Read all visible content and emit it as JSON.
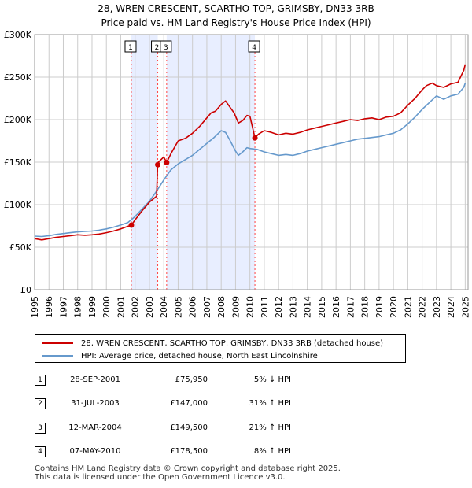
{
  "title_line1": "28, WREN CRESCENT, SCARTHO TOP, GRIMSBY, DN33 3RB",
  "title_line2": "Price paid vs. HM Land Registry's House Price Index (HPI)",
  "colors": {
    "property": "#cc0000",
    "hpi": "#6699cc",
    "shade": "#e8eeff",
    "grid": "#cccccc",
    "marker_line": "#ff4444"
  },
  "chart_data": {
    "type": "line",
    "title": "28, WREN CRESCENT, SCARTHO TOP, GRIMSBY, DN33 3RB",
    "subtitle": "Price paid vs. HM Land Registry's House Price Index (HPI)",
    "xlim": [
      1995,
      2025.2
    ],
    "ylim": [
      0,
      300000
    ],
    "x_ticks": [
      "1995",
      "1996",
      "1997",
      "1998",
      "1999",
      "2000",
      "2001",
      "2002",
      "2003",
      "2004",
      "2005",
      "2006",
      "2007",
      "2008",
      "2009",
      "2010",
      "2011",
      "2012",
      "2013",
      "2014",
      "2015",
      "2016",
      "2017",
      "2018",
      "2019",
      "2020",
      "2021",
      "2022",
      "2023",
      "2024",
      "2025"
    ],
    "y_ticks": [
      {
        "value": 0,
        "label": "£0"
      },
      {
        "value": 50000,
        "label": "£50K"
      },
      {
        "value": 100000,
        "label": "£100K"
      },
      {
        "value": 150000,
        "label": "£150K"
      },
      {
        "value": 200000,
        "label": "£200K"
      },
      {
        "value": 250000,
        "label": "£250K"
      },
      {
        "value": 300000,
        "label": "£300K"
      }
    ],
    "series": [
      {
        "name": "28, WREN CRESCENT, SCARTHO TOP, GRIMSBY, DN33 3RB (detached house)",
        "color": "#cc0000",
        "x": [
          1995.0,
          1995.5,
          1996.0,
          1996.5,
          1997.0,
          1997.5,
          1998.0,
          1998.5,
          1999.0,
          1999.5,
          2000.0,
          2000.5,
          2001.0,
          2001.5,
          2001.74,
          2002.0,
          2002.5,
          2003.0,
          2003.5,
          2003.57,
          2003.62,
          2004.0,
          2004.2,
          2004.5,
          2005.0,
          2005.5,
          2006.0,
          2006.5,
          2007.0,
          2007.3,
          2007.6,
          2008.0,
          2008.3,
          2008.6,
          2008.9,
          2009.2,
          2009.5,
          2009.8,
          2010.0,
          2010.35,
          2010.6,
          2011.0,
          2011.5,
          2012.0,
          2012.5,
          2013.0,
          2013.5,
          2014.0,
          2014.5,
          2015.0,
          2015.5,
          2016.0,
          2016.5,
          2017.0,
          2017.5,
          2018.0,
          2018.5,
          2019.0,
          2019.5,
          2020.0,
          2020.5,
          2021.0,
          2021.5,
          2022.0,
          2022.3,
          2022.7,
          2023.0,
          2023.5,
          2024.0,
          2024.5,
          2024.9,
          2025.0
        ],
        "values": [
          60000,
          58500,
          60000,
          61500,
          62500,
          63500,
          64500,
          64000,
          64500,
          65500,
          67000,
          69000,
          71500,
          74500,
          75950,
          82000,
          93000,
          103000,
          110000,
          147000,
          150000,
          156000,
          149500,
          160000,
          175000,
          178000,
          184000,
          192000,
          202000,
          208000,
          210000,
          218000,
          222000,
          215000,
          208000,
          196000,
          199000,
          205000,
          204000,
          178500,
          183000,
          187000,
          185000,
          182000,
          184000,
          183000,
          185000,
          188000,
          190000,
          192000,
          194000,
          196000,
          198000,
          200000,
          199000,
          201000,
          202000,
          200000,
          203000,
          204000,
          208000,
          217000,
          225000,
          235000,
          240000,
          243000,
          240000,
          238000,
          242000,
          244000,
          258000,
          265000
        ]
      },
      {
        "name": "HPI: Average price, detached house, North East Lincolnshire",
        "color": "#6699cc",
        "x": [
          1995.0,
          1995.5,
          1996.0,
          1996.5,
          1997.0,
          1997.5,
          1998.0,
          1998.5,
          1999.0,
          1999.5,
          2000.0,
          2000.5,
          2001.0,
          2001.5,
          2002.0,
          2002.5,
          2003.0,
          2003.5,
          2004.0,
          2004.5,
          2005.0,
          2005.5,
          2006.0,
          2006.5,
          2007.0,
          2007.5,
          2008.0,
          2008.3,
          2008.6,
          2009.0,
          2009.2,
          2009.5,
          2009.8,
          2010.0,
          2010.5,
          2011.0,
          2011.5,
          2012.0,
          2012.5,
          2013.0,
          2013.5,
          2014.0,
          2014.5,
          2015.0,
          2015.5,
          2016.0,
          2016.5,
          2017.0,
          2017.5,
          2018.0,
          2018.5,
          2019.0,
          2019.5,
          2020.0,
          2020.5,
          2021.0,
          2021.5,
          2022.0,
          2022.5,
          2023.0,
          2023.5,
          2024.0,
          2024.5,
          2024.9,
          2025.0
        ],
        "values": [
          63000,
          62500,
          63500,
          65000,
          66000,
          67000,
          68000,
          68500,
          69000,
          70000,
          71500,
          73500,
          76000,
          79000,
          86000,
          95000,
          104000,
          116000,
          129000,
          141000,
          148000,
          153000,
          158000,
          165000,
          172000,
          179000,
          187000,
          185000,
          176000,
          163000,
          158000,
          162000,
          167000,
          166000,
          165000,
          162000,
          160000,
          158000,
          159000,
          158000,
          160000,
          163000,
          165000,
          167000,
          169000,
          171000,
          173000,
          175000,
          177000,
          178000,
          179000,
          180000,
          182000,
          184000,
          188000,
          195000,
          203000,
          212000,
          220000,
          228000,
          224000,
          228000,
          230000,
          238000,
          243000
        ]
      }
    ],
    "markers": [
      {
        "label": "1",
        "x": 2001.74,
        "y": 75950
      },
      {
        "label": "2",
        "x": 2003.58,
        "y": 147000
      },
      {
        "label": "3",
        "x": 2004.2,
        "y": 149500
      },
      {
        "label": "4",
        "x": 2010.35,
        "y": 178500
      }
    ],
    "shaded_spans": [
      [
        2001.74,
        2003.58
      ],
      [
        2004.2,
        2010.35
      ]
    ]
  },
  "legend": {
    "property": "28, WREN CRESCENT, SCARTHO TOP, GRIMSBY, DN33 3RB (detached house)",
    "hpi": "HPI: Average price, detached house, North East Lincolnshire"
  },
  "transactions": [
    {
      "num": "1",
      "date": "28-SEP-2001",
      "price": "£75,950",
      "hpi": "5% ↓ HPI"
    },
    {
      "num": "2",
      "date": "31-JUL-2003",
      "price": "£147,000",
      "hpi": "31% ↑ HPI"
    },
    {
      "num": "3",
      "date": "12-MAR-2004",
      "price": "£149,500",
      "hpi": "21% ↑ HPI"
    },
    {
      "num": "4",
      "date": "07-MAY-2010",
      "price": "£178,500",
      "hpi": "8% ↑ HPI"
    }
  ],
  "footer_line1": "Contains HM Land Registry data © Crown copyright and database right 2025.",
  "footer_line2": "This data is licensed under the Open Government Licence v3.0."
}
